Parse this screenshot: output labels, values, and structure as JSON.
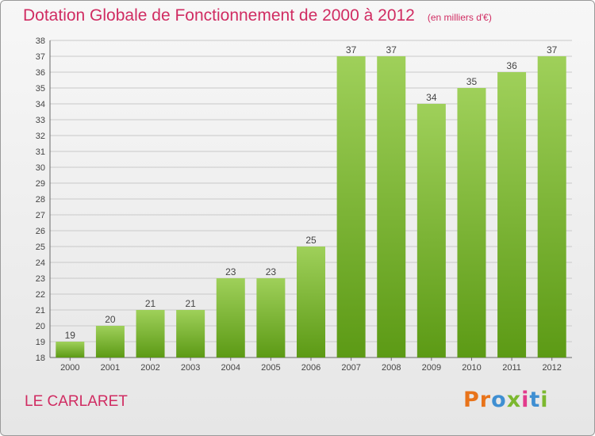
{
  "title": "Dotation Globale de Fonctionnement de 2000 à 2012",
  "unit_note": "(en milliers d'€)",
  "commune": "LE CARLARET",
  "logo": {
    "text": "Proxiti",
    "letter_colors": [
      "#e8731a",
      "#e8731a",
      "#3f8fd2",
      "#7cb82f",
      "#e23a8c",
      "#3f8fd2",
      "#7cb82f"
    ]
  },
  "colors": {
    "title": "#d02c62",
    "bar_top": "#9fd05a",
    "bar_bottom": "#5c9a15",
    "grid": "#c9c9c9"
  },
  "chart_data": {
    "type": "bar",
    "categories": [
      "2000",
      "2001",
      "2002",
      "2003",
      "2004",
      "2005",
      "2006",
      "2007",
      "2008",
      "2009",
      "2010",
      "2011",
      "2012"
    ],
    "values": [
      19,
      20,
      21,
      21,
      23,
      23,
      25,
      37,
      37,
      34,
      35,
      36,
      37
    ],
    "ylim": [
      18,
      38
    ],
    "yticks": [
      18,
      19,
      20,
      21,
      22,
      23,
      24,
      25,
      26,
      27,
      28,
      29,
      30,
      31,
      32,
      33,
      34,
      35,
      36,
      37,
      38
    ],
    "grid": true,
    "data_labels": true
  }
}
